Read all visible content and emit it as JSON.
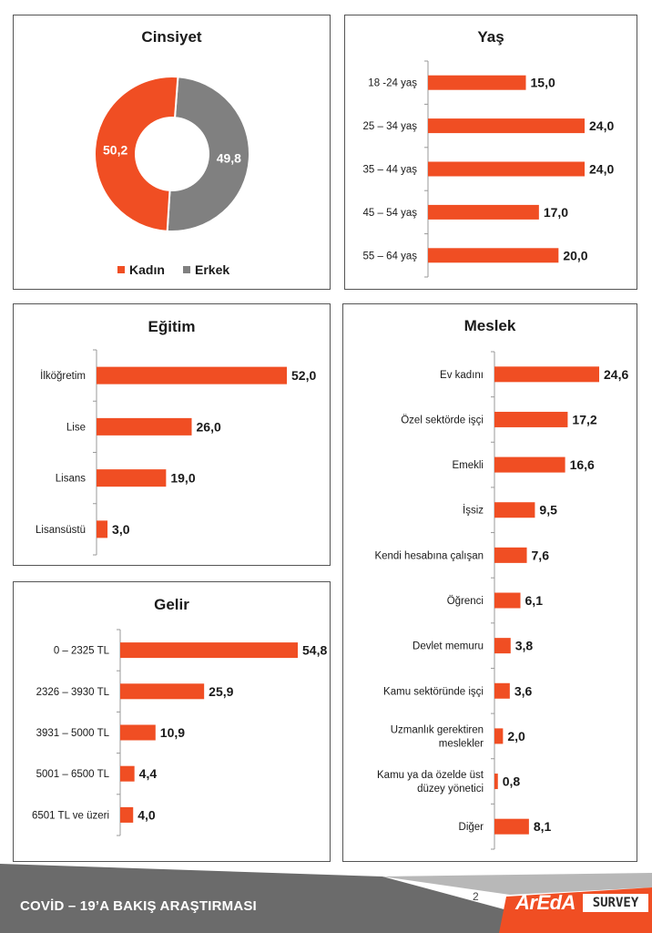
{
  "colors": {
    "accent": "#f04e23",
    "gray": "#808080",
    "footer_dark": "#6b6b6b",
    "footer_light": "#b8b8b8"
  },
  "footer": {
    "title": "COVİD – 19’A  BAKIŞ ARAŞTIRMASI",
    "page_number": "2",
    "logo_main": "ArEdA",
    "logo_sub": "SURVEY"
  },
  "chart_data": [
    {
      "id": "cinsiyet",
      "type": "pie",
      "title": "Cinsiyet",
      "slices": [
        {
          "label": "Kadın",
          "value": 50.2,
          "display": "50,2",
          "color": "#f04e23"
        },
        {
          "label": "Erkek",
          "value": 49.8,
          "display": "49,8",
          "color": "#808080"
        }
      ],
      "legend": "bottom"
    },
    {
      "id": "yas",
      "type": "bar",
      "orientation": "horizontal",
      "title": "Yaş",
      "categories": [
        "18 -24 yaş",
        "25 – 34 yaş",
        "35 – 44 yaş",
        "45 – 54 yaş",
        "55 – 64 yaş"
      ],
      "values": [
        15.0,
        24.0,
        24.0,
        17.0,
        20.0
      ],
      "labels": [
        "15,0",
        "24,0",
        "24,0",
        "17,0",
        "20,0"
      ]
    },
    {
      "id": "egitim",
      "type": "bar",
      "orientation": "horizontal",
      "title": "Eğitim",
      "categories": [
        "İlköğretim",
        "Lise",
        "Lisans",
        "Lisansüstü"
      ],
      "values": [
        52.0,
        26.0,
        19.0,
        3.0
      ],
      "labels": [
        "52,0",
        "26,0",
        "19,0",
        "3,0"
      ]
    },
    {
      "id": "meslek",
      "type": "bar",
      "orientation": "horizontal",
      "title": "Meslek",
      "categories": [
        "Ev kadını",
        "Özel sektörde işçi",
        "Emekli",
        "İşsiz",
        "Kendi hesabına çalışan",
        "Öğrenci",
        "Devlet memuru",
        "Kamu sektöründe işçi",
        "Uzmanlık gerektiren meslekler",
        "Kamu ya da özelde üst düzey yönetici",
        "Diğer"
      ],
      "values": [
        24.6,
        17.2,
        16.6,
        9.5,
        7.6,
        6.1,
        3.8,
        3.6,
        2.0,
        0.8,
        8.1
      ],
      "labels": [
        "24,6",
        "17,2",
        "16,6",
        "9,5",
        "7,6",
        "6,1",
        "3,8",
        "3,6",
        "2,0",
        "0,8",
        "8,1"
      ]
    },
    {
      "id": "gelir",
      "type": "bar",
      "orientation": "horizontal",
      "title": "Gelir",
      "categories": [
        "0 – 2325 TL",
        "2326 – 3930 TL",
        "3931 – 5000 TL",
        "5001 – 6500 TL",
        "6501 TL ve üzeri"
      ],
      "values": [
        54.8,
        25.9,
        10.9,
        4.4,
        4.0
      ],
      "labels": [
        "54,8",
        "25,9",
        "10,9",
        "4,4",
        "4,0"
      ]
    }
  ]
}
